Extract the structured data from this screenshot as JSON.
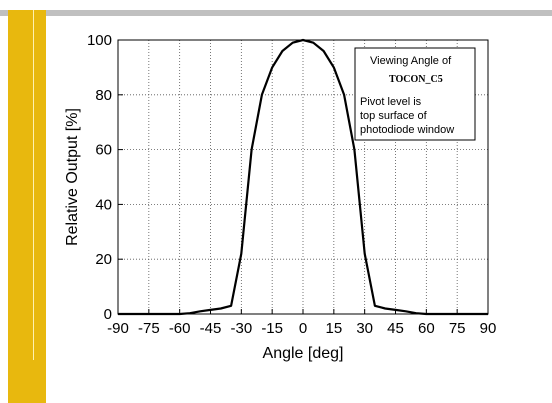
{
  "colors": {
    "accent_bar": "#e8b80e",
    "top_bar": "#c0c0c0",
    "curve": "#000000"
  },
  "chart_data": {
    "type": "line",
    "title": "",
    "xlabel": "Angle [deg]",
    "ylabel": "Relative Output [%]",
    "xlim": [
      -90,
      90
    ],
    "ylim": [
      0,
      100
    ],
    "xticks": [
      -90,
      -75,
      -60,
      -45,
      -30,
      -15,
      0,
      15,
      30,
      45,
      60,
      75,
      90
    ],
    "yticks": [
      0,
      20,
      40,
      60,
      80,
      100
    ],
    "grid": true,
    "legend_placement": "top-right",
    "annotation": {
      "line1": "Viewing Angle of",
      "device": "TOCON_C5",
      "line3": "Pivot level is",
      "line4": "top surface of",
      "line5": "photodiode window"
    },
    "series": [
      {
        "x": [
          -90,
          -60,
          -55,
          -50,
          -45,
          -40,
          -35,
          -30,
          -25,
          -20,
          -15,
          -10,
          -5,
          0,
          5,
          10,
          15,
          20,
          25,
          30,
          35,
          40,
          45,
          50,
          55,
          60,
          90
        ],
        "y": [
          0,
          0,
          0.3,
          1,
          1.5,
          2,
          3,
          22,
          60,
          80,
          90,
          96,
          99,
          100,
          99,
          96,
          90,
          80,
          60,
          22,
          3,
          2,
          1.5,
          1,
          0.3,
          0,
          0
        ]
      }
    ]
  }
}
